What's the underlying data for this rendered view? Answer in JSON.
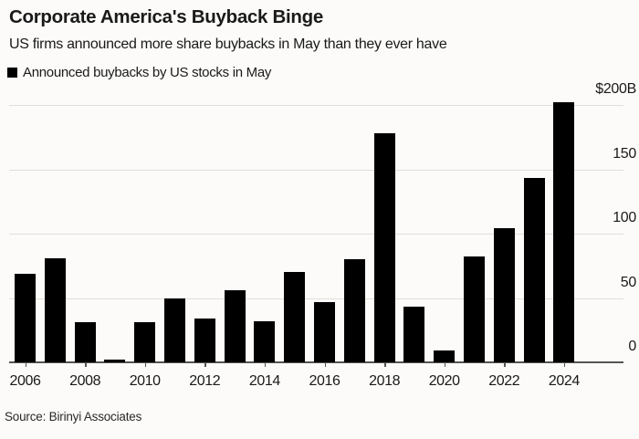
{
  "header": {
    "title": "Corporate America's Buyback Binge",
    "subtitle": "US firms announced more share buybacks in May than they ever have"
  },
  "legend": {
    "label": "Announced buybacks by US stocks in May",
    "swatch_color": "#000000"
  },
  "source": "Source: Birinyi Associates",
  "colors": {
    "background": "#fcfbf9",
    "bar": "#000000",
    "gridline": "#dfdedb",
    "baseline": "#555555",
    "text": "#1a1a1a"
  },
  "chart_data": {
    "type": "bar",
    "title": "Corporate America's Buyback Binge",
    "subtitle": "US firms announced more share buybacks in May than they ever have",
    "series_name": "Announced buybacks by US stocks in May",
    "categories": [
      "2006",
      "2007",
      "2008",
      "2009",
      "2010",
      "2011",
      "2012",
      "2013",
      "2014",
      "2015",
      "2016",
      "2017",
      "2018",
      "2019",
      "2020",
      "2021",
      "2022",
      "2023",
      "2024"
    ],
    "values": [
      69,
      81,
      31,
      2,
      31,
      50,
      34,
      56,
      32,
      70,
      47,
      80,
      178,
      43,
      9,
      82,
      104,
      143,
      202
    ],
    "unit": "$B",
    "xlabel": "",
    "ylabel": "",
    "ylim": [
      0,
      200
    ],
    "yticks": [
      0,
      50,
      100,
      150,
      200
    ],
    "ytick_labels": [
      "0",
      "50",
      "100",
      "150",
      "$200B"
    ],
    "xtick_labels": [
      "2006",
      "2008",
      "2010",
      "2012",
      "2014",
      "2016",
      "2018",
      "2020",
      "2022",
      "2024"
    ],
    "grid": true,
    "y_axis_side": "right",
    "legend_position": "top-left"
  }
}
